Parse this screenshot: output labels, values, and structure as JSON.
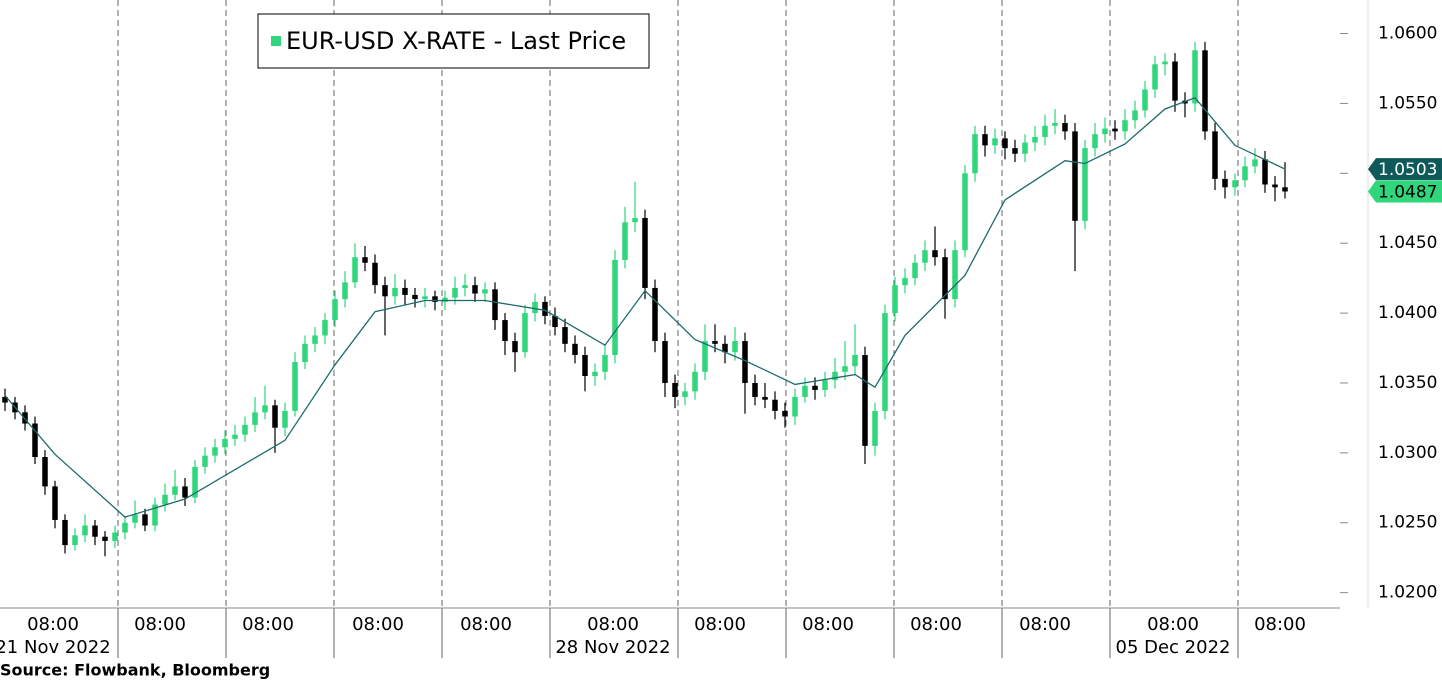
{
  "chart_data": {
    "type": "candlestick",
    "legend": "EUR-USD X-RATE - Last Price",
    "up_color": "#2fd67b",
    "down_color": "#000000",
    "ma": {
      "color": "#1e6b6b",
      "x": [
        0,
        5,
        12,
        18,
        28,
        33,
        37,
        42,
        48,
        54,
        60,
        64,
        69,
        74,
        79,
        85,
        87,
        90,
        96,
        100,
        106,
        108,
        112,
        116,
        119,
        123,
        128
      ],
      "values": [
        1.0341,
        1.0299,
        1.0254,
        1.0267,
        1.0309,
        1.0363,
        1.0401,
        1.0409,
        1.0409,
        1.0402,
        1.0377,
        1.0416,
        1.0381,
        1.0366,
        1.0349,
        1.0356,
        1.0347,
        1.0384,
        1.0427,
        1.0481,
        1.0509,
        1.0507,
        1.0521,
        1.0546,
        1.0554,
        1.052,
        1.0503
      ]
    },
    "candles": [
      [
        1.034,
        1.0346,
        1.033,
        1.0336
      ],
      [
        1.0336,
        1.034,
        1.0324,
        1.0329
      ],
      [
        1.0329,
        1.0334,
        1.0316,
        1.0321
      ],
      [
        1.0321,
        1.0326,
        1.0292,
        1.0297
      ],
      [
        1.0297,
        1.0302,
        1.027,
        1.0276
      ],
      [
        1.0276,
        1.028,
        1.0246,
        1.0252
      ],
      [
        1.0252,
        1.0256,
        1.0228,
        1.0234
      ],
      [
        1.0234,
        1.0246,
        1.023,
        1.0241
      ],
      [
        1.0241,
        1.0256,
        1.0236,
        1.0248
      ],
      [
        1.0248,
        1.0252,
        1.0234,
        1.024
      ],
      [
        1.024,
        1.0244,
        1.0226,
        1.0237
      ],
      [
        1.0237,
        1.0248,
        1.0232,
        1.0243
      ],
      [
        1.0243,
        1.0255,
        1.0238,
        1.025
      ],
      [
        1.025,
        1.0266,
        1.0246,
        1.0256
      ],
      [
        1.0256,
        1.026,
        1.0244,
        1.0248
      ],
      [
        1.0248,
        1.0268,
        1.0244,
        1.0263
      ],
      [
        1.0263,
        1.0278,
        1.0258,
        1.027
      ],
      [
        1.027,
        1.0288,
        1.0266,
        1.0276
      ],
      [
        1.0276,
        1.0282,
        1.0262,
        1.0268
      ],
      [
        1.0268,
        1.0295,
        1.0264,
        1.029
      ],
      [
        1.029,
        1.0304,
        1.0285,
        1.0298
      ],
      [
        1.0298,
        1.031,
        1.0293,
        1.0304
      ],
      [
        1.0304,
        1.0316,
        1.0299,
        1.031
      ],
      [
        1.031,
        1.032,
        1.0305,
        1.0313
      ],
      [
        1.0313,
        1.0326,
        1.0308,
        1.032
      ],
      [
        1.032,
        1.034,
        1.0315,
        1.0329
      ],
      [
        1.0329,
        1.0348,
        1.0324,
        1.0334
      ],
      [
        1.0334,
        1.0338,
        1.03,
        1.0318
      ],
      [
        1.0318,
        1.0336,
        1.0312,
        1.033
      ],
      [
        1.033,
        1.0372,
        1.0326,
        1.0365
      ],
      [
        1.0365,
        1.0384,
        1.036,
        1.0378
      ],
      [
        1.0378,
        1.039,
        1.0372,
        1.0384
      ],
      [
        1.0384,
        1.04,
        1.0378,
        1.0395
      ],
      [
        1.0395,
        1.0416,
        1.039,
        1.041
      ],
      [
        1.041,
        1.043,
        1.0404,
        1.0422
      ],
      [
        1.0422,
        1.045,
        1.0418,
        1.044
      ],
      [
        1.044,
        1.0448,
        1.043,
        1.0436
      ],
      [
        1.0436,
        1.0442,
        1.0414,
        1.042
      ],
      [
        1.042,
        1.0426,
        1.0384,
        1.0412
      ],
      [
        1.0412,
        1.0428,
        1.0406,
        1.0418
      ],
      [
        1.0418,
        1.0424,
        1.0406,
        1.0413
      ],
      [
        1.0413,
        1.0418,
        1.0404,
        1.041
      ],
      [
        1.041,
        1.0418,
        1.0404,
        1.0412
      ],
      [
        1.0412,
        1.0416,
        1.0402,
        1.0408
      ],
      [
        1.0408,
        1.0416,
        1.0402,
        1.0411
      ],
      [
        1.0411,
        1.0426,
        1.0406,
        1.0418
      ],
      [
        1.0418,
        1.0428,
        1.0412,
        1.042
      ],
      [
        1.042,
        1.0426,
        1.0408,
        1.0414
      ],
      [
        1.0414,
        1.0422,
        1.0408,
        1.0417
      ],
      [
        1.0417,
        1.0422,
        1.0388,
        1.0395
      ],
      [
        1.0395,
        1.04,
        1.037,
        1.038
      ],
      [
        1.038,
        1.0386,
        1.0358,
        1.0372
      ],
      [
        1.0372,
        1.0406,
        1.0368,
        1.04
      ],
      [
        1.04,
        1.0414,
        1.0394,
        1.0408
      ],
      [
        1.0408,
        1.0412,
        1.0392,
        1.0398
      ],
      [
        1.0398,
        1.0404,
        1.0384,
        1.039
      ],
      [
        1.039,
        1.0396,
        1.0372,
        1.0378
      ],
      [
        1.0378,
        1.0384,
        1.0364,
        1.037
      ],
      [
        1.037,
        1.0376,
        1.0344,
        1.0355
      ],
      [
        1.0355,
        1.0364,
        1.0348,
        1.0358
      ],
      [
        1.0358,
        1.0378,
        1.0352,
        1.037
      ],
      [
        1.037,
        1.0445,
        1.0364,
        1.0438
      ],
      [
        1.0438,
        1.0476,
        1.0432,
        1.0465
      ],
      [
        1.0465,
        1.0494,
        1.0458,
        1.0468
      ],
      [
        1.0468,
        1.0474,
        1.041,
        1.0418
      ],
      [
        1.0418,
        1.0424,
        1.0372,
        1.038
      ],
      [
        1.038,
        1.0386,
        1.034,
        1.035
      ],
      [
        1.035,
        1.0356,
        1.0332,
        1.034
      ],
      [
        1.034,
        1.035,
        1.0334,
        1.0344
      ],
      [
        1.0344,
        1.0364,
        1.0338,
        1.0358
      ],
      [
        1.0358,
        1.0392,
        1.0352,
        1.038
      ],
      [
        1.038,
        1.0392,
        1.0372,
        1.0378
      ],
      [
        1.0378,
        1.0384,
        1.0364,
        1.0372
      ],
      [
        1.0372,
        1.039,
        1.0366,
        1.038
      ],
      [
        1.038,
        1.0386,
        1.0328,
        1.035
      ],
      [
        1.035,
        1.0356,
        1.0334,
        1.034
      ],
      [
        1.034,
        1.035,
        1.0332,
        1.0338
      ],
      [
        1.0338,
        1.0344,
        1.0324,
        1.033
      ],
      [
        1.033,
        1.0336,
        1.0318,
        1.0326
      ],
      [
        1.0326,
        1.0346,
        1.032,
        1.034
      ],
      [
        1.034,
        1.0354,
        1.0336,
        1.0348
      ],
      [
        1.0348,
        1.0354,
        1.0338,
        1.0345
      ],
      [
        1.0345,
        1.0358,
        1.034,
        1.0352
      ],
      [
        1.0352,
        1.0368,
        1.0346,
        1.0358
      ],
      [
        1.0358,
        1.038,
        1.0352,
        1.0362
      ],
      [
        1.0362,
        1.0392,
        1.0356,
        1.037
      ],
      [
        1.037,
        1.0376,
        1.0292,
        1.0305
      ],
      [
        1.0305,
        1.0336,
        1.0298,
        1.033
      ],
      [
        1.033,
        1.0406,
        1.0324,
        1.04
      ],
      [
        1.04,
        1.0426,
        1.0394,
        1.042
      ],
      [
        1.042,
        1.0432,
        1.0414,
        1.0425
      ],
      [
        1.0425,
        1.0442,
        1.042,
        1.0436
      ],
      [
        1.0436,
        1.0452,
        1.043,
        1.0445
      ],
      [
        1.0445,
        1.0462,
        1.0434,
        1.044
      ],
      [
        1.044,
        1.0446,
        1.0396,
        1.041
      ],
      [
        1.041,
        1.0452,
        1.0404,
        1.0445
      ],
      [
        1.0445,
        1.0506,
        1.044,
        1.05
      ],
      [
        1.05,
        1.0534,
        1.0494,
        1.0528
      ],
      [
        1.0528,
        1.0534,
        1.0512,
        1.052
      ],
      [
        1.052,
        1.0532,
        1.0514,
        1.0525
      ],
      [
        1.0525,
        1.053,
        1.051,
        1.0518
      ],
      [
        1.0518,
        1.0524,
        1.0508,
        1.0514
      ],
      [
        1.0514,
        1.0528,
        1.0508,
        1.0522
      ],
      [
        1.0522,
        1.0534,
        1.0516,
        1.0526
      ],
      [
        1.0526,
        1.0542,
        1.052,
        1.0534
      ],
      [
        1.0534,
        1.0546,
        1.0528,
        1.0536
      ],
      [
        1.0536,
        1.0542,
        1.0524,
        1.053
      ],
      [
        1.053,
        1.0536,
        1.043,
        1.0466
      ],
      [
        1.0466,
        1.0524,
        1.046,
        1.0518
      ],
      [
        1.0518,
        1.0536,
        1.0512,
        1.0528
      ],
      [
        1.0528,
        1.054,
        1.0522,
        1.0532
      ],
      [
        1.0532,
        1.0538,
        1.0524,
        1.053
      ],
      [
        1.053,
        1.0546,
        1.0524,
        1.0538
      ],
      [
        1.0538,
        1.0552,
        1.0532,
        1.0545
      ],
      [
        1.0545,
        1.0566,
        1.054,
        1.056
      ],
      [
        1.056,
        1.0584,
        1.0554,
        1.0578
      ],
      [
        1.0578,
        1.0586,
        1.057,
        1.058
      ],
      [
        1.058,
        1.0586,
        1.0544,
        1.0552
      ],
      [
        1.0552,
        1.0558,
        1.054,
        1.055
      ],
      [
        1.055,
        1.0594,
        1.0544,
        1.0588
      ],
      [
        1.0588,
        1.0594,
        1.0524,
        1.053
      ],
      [
        1.053,
        1.0536,
        1.0488,
        1.0496
      ],
      [
        1.0496,
        1.0502,
        1.0482,
        1.049
      ],
      [
        1.049,
        1.05,
        1.0484,
        1.0495
      ],
      [
        1.0495,
        1.0512,
        1.049,
        1.0505
      ],
      [
        1.0505,
        1.0518,
        1.05,
        1.051
      ],
      [
        1.051,
        1.0516,
        1.0486,
        1.0492
      ],
      [
        1.0492,
        1.0498,
        1.048,
        1.049
      ],
      [
        1.049,
        1.0508,
        1.0482,
        1.0487
      ]
    ],
    "price_tags": [
      {
        "value": 1.0503,
        "color": "#0e5a5a"
      },
      {
        "value": 1.0487,
        "color": "#2fd67b"
      }
    ],
    "xlim": [
      -0.5,
      133.5
    ],
    "xticks": [
      {
        "value": 4.8,
        "label": "08:00"
      },
      {
        "value": 15.5,
        "label": "08:00"
      },
      {
        "value": 26.3,
        "label": "08:00"
      },
      {
        "value": 37.3,
        "label": "08:00"
      },
      {
        "value": 48.1,
        "label": "08:00"
      },
      {
        "value": 60.8,
        "label": "08:00"
      },
      {
        "value": 71.5,
        "label": "08:00"
      },
      {
        "value": 82.3,
        "label": "08:00"
      },
      {
        "value": 93.1,
        "label": "08:00"
      },
      {
        "value": 104,
        "label": "08:00"
      },
      {
        "value": 116.8,
        "label": "08:00"
      },
      {
        "value": 127.5,
        "label": "08:00"
      }
    ],
    "date_labels": [
      {
        "value": 4.8,
        "label": "21 Nov 2022"
      },
      {
        "value": 60.8,
        "label": "28 Nov 2022"
      },
      {
        "value": 116.8,
        "label": "05 Dec 2022"
      }
    ],
    "session_breaks": [
      11.3,
      22.1,
      32.9,
      43.7,
      54.5,
      67.3,
      78.1,
      88.9,
      99.7,
      110.5,
      123.3
    ],
    "ylim": [
      1.0189,
      1.0624
    ],
    "yticks": [
      {
        "value": 1.02,
        "label": "1.0200"
      },
      {
        "value": 1.025,
        "label": "1.0250"
      },
      {
        "value": 1.03,
        "label": "1.0300"
      },
      {
        "value": 1.035,
        "label": "1.0350"
      },
      {
        "value": 1.04,
        "label": "1.0400"
      },
      {
        "value": 1.045,
        "label": "1.0450"
      },
      {
        "value": 1.05,
        "label": "1.0500"
      },
      {
        "value": 1.055,
        "label": "1.0550"
      },
      {
        "value": 1.06,
        "label": "1.0600"
      }
    ],
    "source": "Source: Flowbank, Bloomberg"
  }
}
